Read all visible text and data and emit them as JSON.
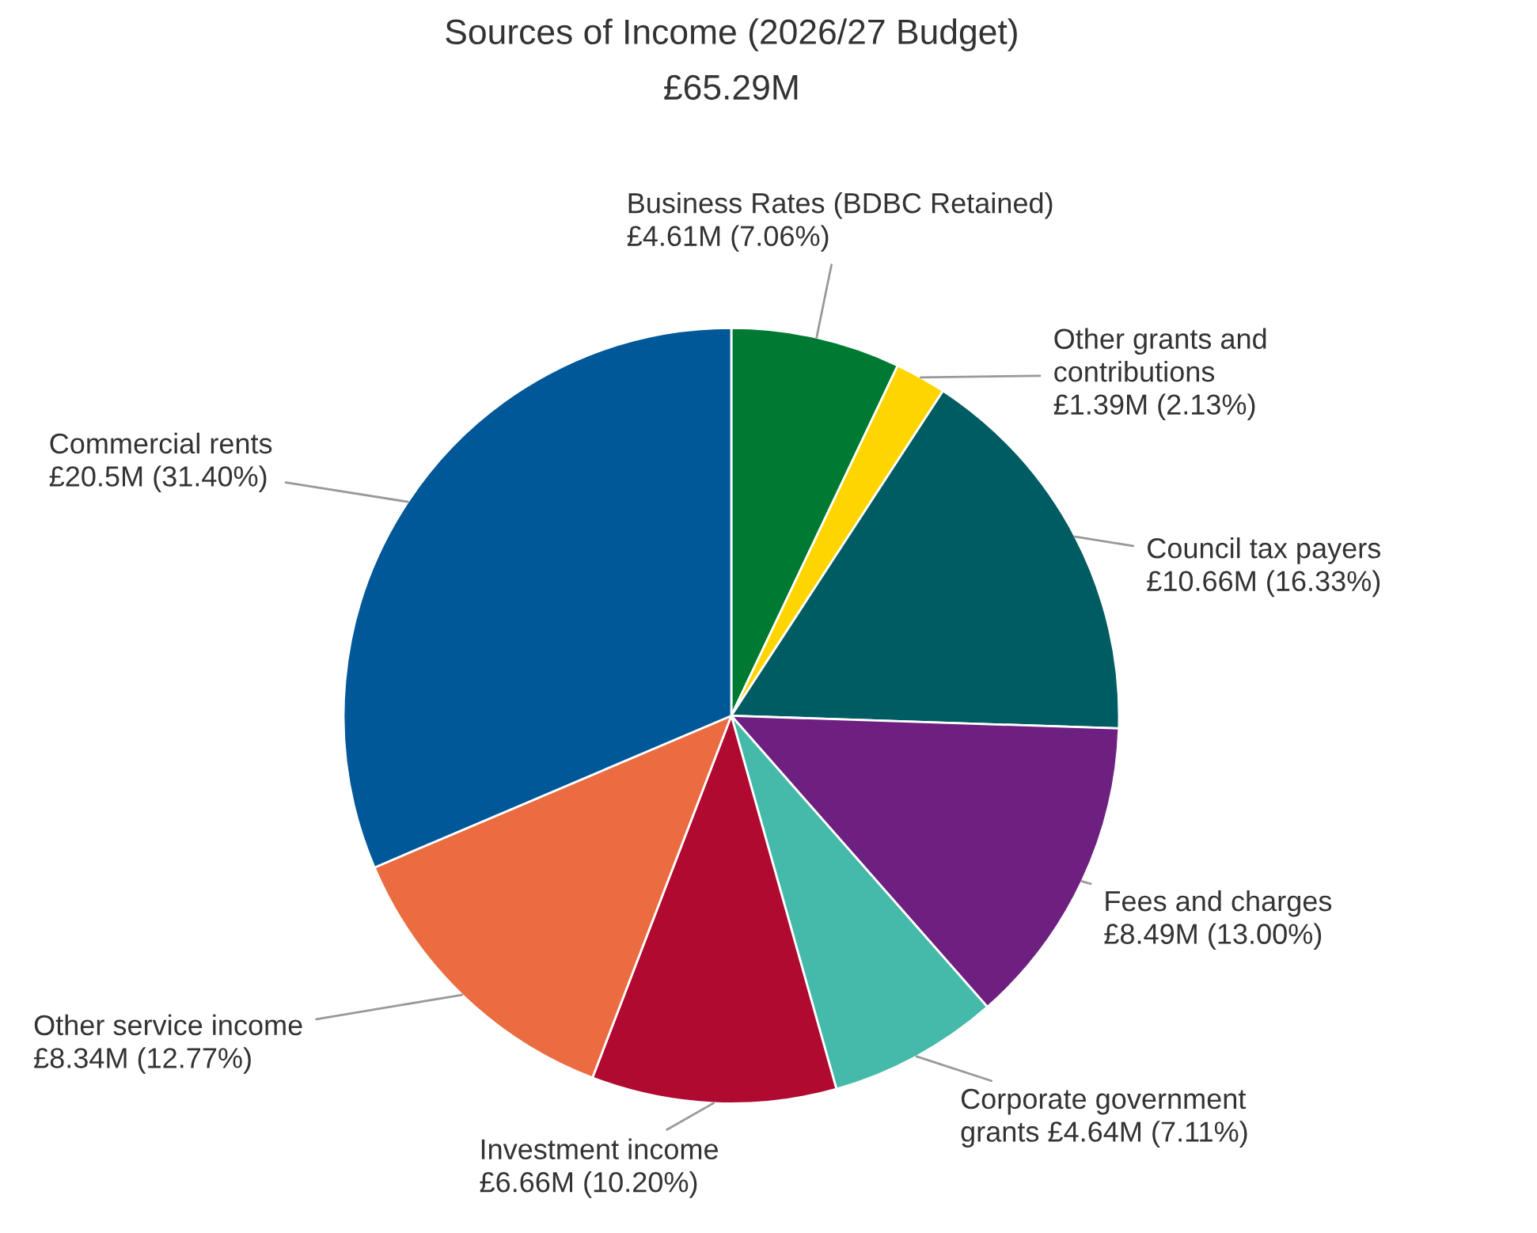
{
  "chart_data": {
    "type": "pie",
    "title": "Sources of Income (2026/27 Budget)",
    "subtitle": "£65.29M",
    "categories": [
      "Business Rates (BDBC Retained)",
      "Other grants and contributions",
      "Council tax payers",
      "Fees and charges",
      "Corporate government grants",
      "Investment income",
      "Other service income",
      "Commercial rents"
    ],
    "values": [
      7.06,
      2.13,
      16.33,
      13.0,
      7.11,
      10.2,
      12.77,
      31.4
    ],
    "value_labels": [
      "£4.61M (7.06%)",
      "£1.39M (2.13%)",
      "£10.66M (16.33%)",
      "£8.49M (13.00%)",
      "£4.64M (7.11%)",
      "£6.66M (10.20%)",
      "£8.34M (12.77%)",
      "£20.5M (31.40%)"
    ],
    "colors": [
      "#007a33",
      "#ffd500",
      "#005c63",
      "#6e2080",
      "#45b9aa",
      "#b00a30",
      "#ea6c40",
      "#005899"
    ]
  }
}
